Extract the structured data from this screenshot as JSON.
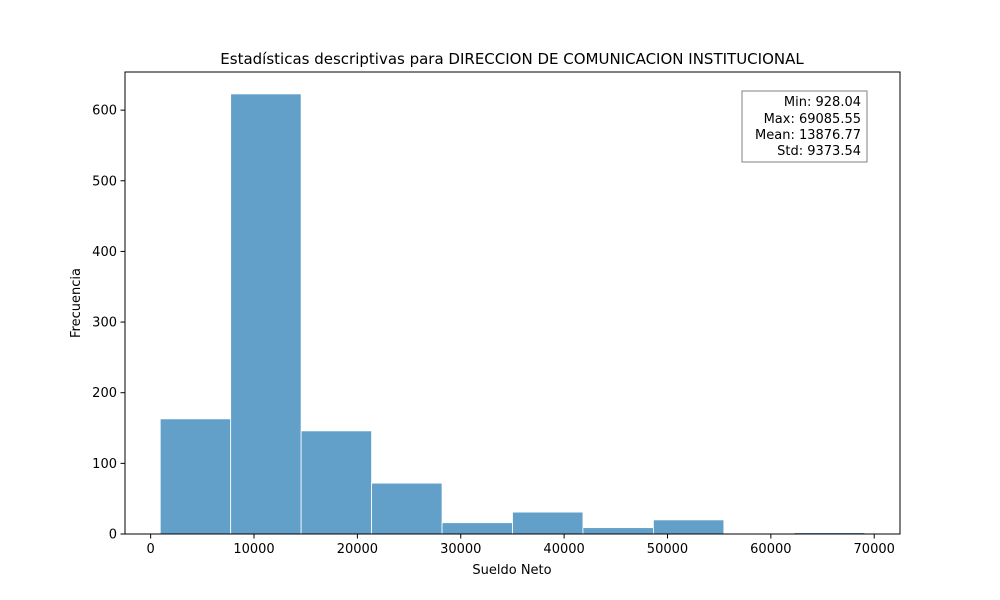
{
  "chart_data": {
    "type": "bar",
    "title": "Estadísticas descriptivas para DIRECCION DE COMUNICACION INSTITUCIONAL",
    "xlabel": "Sueldo Neto",
    "ylabel": "Frecuencia",
    "xlim": [
      -2480,
      72494
    ],
    "ylim": [
      0,
      654
    ],
    "xticks": [
      0,
      10000,
      20000,
      30000,
      40000,
      50000,
      60000,
      70000
    ],
    "yticks": [
      0,
      100,
      200,
      300,
      400,
      500,
      600
    ],
    "bin_edges": [
      928.04,
      7743.79,
      14559.54,
      21375.29,
      28191.04,
      35006.8,
      41822.55,
      48638.3,
      55454.05,
      62269.8,
      69085.55
    ],
    "values": [
      163,
      623,
      146,
      72,
      16,
      31,
      9,
      20,
      0,
      2
    ],
    "bar_color": "#62a0ca",
    "grid": false,
    "stats_box": {
      "placement": "top-right",
      "lines": [
        "Min: 928.04",
        "Max: 69085.55",
        "Mean: 13876.77",
        "Std: 9373.54"
      ]
    }
  }
}
